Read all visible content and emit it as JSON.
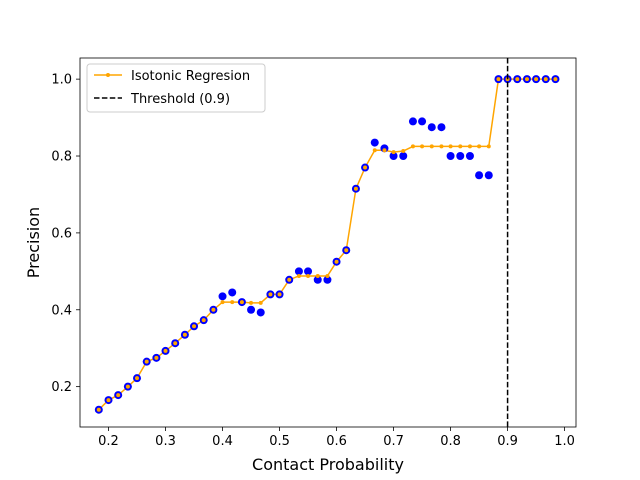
{
  "chart_data": {
    "type": "scatter",
    "title": "",
    "xlabel": "Contact Probability",
    "ylabel": "Precision",
    "xlim": [
      0.15,
      1.02
    ],
    "ylim": [
      0.095,
      1.055
    ],
    "xticks": [
      0.2,
      0.3,
      0.4,
      0.5,
      0.6,
      0.7,
      0.8,
      0.9,
      1.0
    ],
    "xtick_labels": [
      "0.2",
      "0.3",
      "0.4",
      "0.5",
      "0.6",
      "0.7",
      "0.8",
      "0.9",
      "1.0"
    ],
    "yticks": [
      0.2,
      0.4,
      0.6,
      0.8,
      1.0
    ],
    "ytick_labels": [
      "0.2",
      "0.4",
      "0.6",
      "0.8",
      "1.0"
    ],
    "grid": false,
    "legend_position": "upper-left",
    "threshold": {
      "label": "Threshold (0.9)",
      "x": 0.9,
      "color": "#000000",
      "style": "dashed"
    },
    "series": [
      {
        "name": "Isotonic Regresion",
        "kind": "line",
        "color": "#ffa500",
        "marker": "point",
        "x": [
          0.183,
          0.2,
          0.217,
          0.234,
          0.25,
          0.267,
          0.284,
          0.3,
          0.317,
          0.334,
          0.35,
          0.367,
          0.384,
          0.4,
          0.417,
          0.434,
          0.45,
          0.467,
          0.484,
          0.5,
          0.517,
          0.534,
          0.55,
          0.567,
          0.584,
          0.6,
          0.617,
          0.634,
          0.65,
          0.667,
          0.684,
          0.7,
          0.717,
          0.734,
          0.75,
          0.767,
          0.784,
          0.8,
          0.817,
          0.834,
          0.85,
          0.867,
          0.884,
          0.9,
          0.917,
          0.934,
          0.95,
          0.967,
          0.984
        ],
        "y": [
          0.14,
          0.165,
          0.178,
          0.2,
          0.222,
          0.265,
          0.275,
          0.293,
          0.313,
          0.335,
          0.357,
          0.373,
          0.4,
          0.42,
          0.42,
          0.42,
          0.418,
          0.418,
          0.44,
          0.44,
          0.478,
          0.488,
          0.488,
          0.488,
          0.488,
          0.525,
          0.555,
          0.715,
          0.77,
          0.815,
          0.815,
          0.81,
          0.813,
          0.825,
          0.825,
          0.825,
          0.825,
          0.825,
          0.825,
          0.825,
          0.825,
          0.825,
          1.0,
          1.0,
          1.0,
          1.0,
          1.0,
          1.0,
          1.0
        ]
      },
      {
        "name": "",
        "kind": "scatter",
        "color": "#0000ff",
        "marker": "circle",
        "x": [
          0.183,
          0.2,
          0.217,
          0.234,
          0.25,
          0.267,
          0.284,
          0.3,
          0.317,
          0.334,
          0.35,
          0.367,
          0.384,
          0.4,
          0.417,
          0.434,
          0.45,
          0.467,
          0.484,
          0.5,
          0.517,
          0.534,
          0.55,
          0.567,
          0.584,
          0.6,
          0.617,
          0.634,
          0.65,
          0.667,
          0.684,
          0.7,
          0.717,
          0.734,
          0.75,
          0.767,
          0.784,
          0.8,
          0.817,
          0.834,
          0.85,
          0.867,
          0.884,
          0.9,
          0.917,
          0.934,
          0.95,
          0.967,
          0.984
        ],
        "y": [
          0.14,
          0.165,
          0.178,
          0.2,
          0.222,
          0.265,
          0.275,
          0.293,
          0.313,
          0.335,
          0.357,
          0.373,
          0.4,
          0.435,
          0.445,
          0.42,
          0.4,
          0.393,
          0.44,
          0.44,
          0.478,
          0.5,
          0.5,
          0.478,
          0.478,
          0.525,
          0.555,
          0.715,
          0.77,
          0.835,
          0.82,
          0.8,
          0.8,
          0.89,
          0.89,
          0.875,
          0.875,
          0.8,
          0.8,
          0.8,
          0.75,
          0.75,
          1.0,
          1.0,
          1.0,
          1.0,
          1.0,
          1.0,
          1.0
        ]
      }
    ]
  }
}
